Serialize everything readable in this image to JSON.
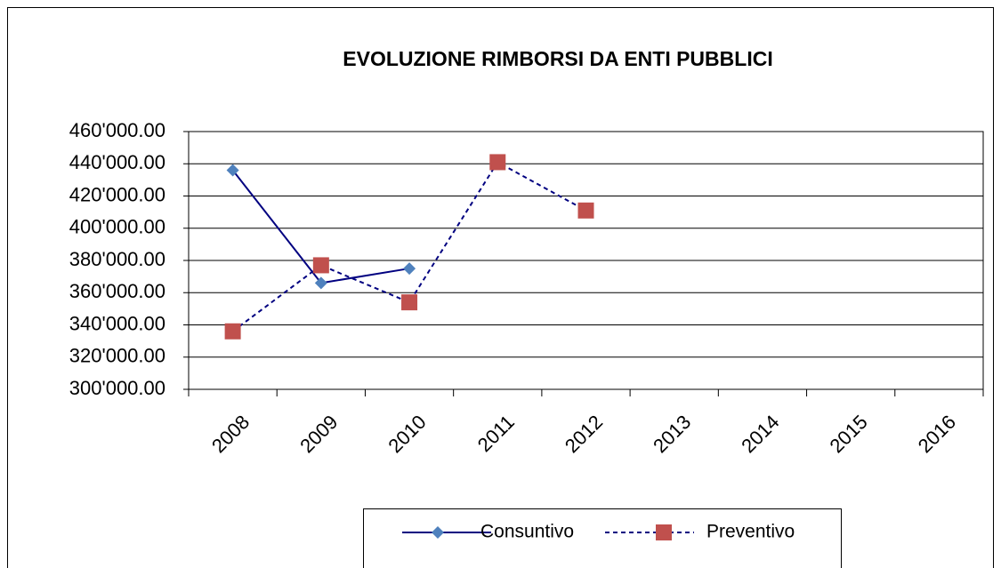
{
  "chart_data": {
    "type": "line",
    "title": "EVOLUZIONE RIMBORSI DA ENTI PUBBLICI",
    "categories": [
      "2008",
      "2009",
      "2010",
      "2011",
      "2012",
      "2013",
      "2014",
      "2015",
      "2016"
    ],
    "series": [
      {
        "name": "Consuntivo",
        "color": "#000080",
        "marker_color": "#4f81bd",
        "marker": "diamond",
        "line_style": "solid",
        "values": [
          436000,
          366000,
          375000,
          null,
          null,
          null,
          null,
          null,
          null
        ]
      },
      {
        "name": "Preventivo",
        "color": "#000080",
        "marker_color": "#c0504d",
        "marker": "square",
        "line_style": "dashed",
        "values": [
          336000,
          377000,
          354000,
          441000,
          411000,
          null,
          null,
          null,
          null
        ]
      }
    ],
    "ylim": [
      300000,
      460000
    ],
    "yticks": [
      {
        "value": 300000,
        "label": "300'000.00"
      },
      {
        "value": 320000,
        "label": "320'000.00"
      },
      {
        "value": 340000,
        "label": "340'000.00"
      },
      {
        "value": 360000,
        "label": "360'000.00"
      },
      {
        "value": 380000,
        "label": "380'000.00"
      },
      {
        "value": 400000,
        "label": "400'000.00"
      },
      {
        "value": 420000,
        "label": "420'000.00"
      },
      {
        "value": 440000,
        "label": "440'000.00"
      },
      {
        "value": 460000,
        "label": "460'000.00"
      }
    ],
    "grid": true,
    "legend": "bottom"
  }
}
